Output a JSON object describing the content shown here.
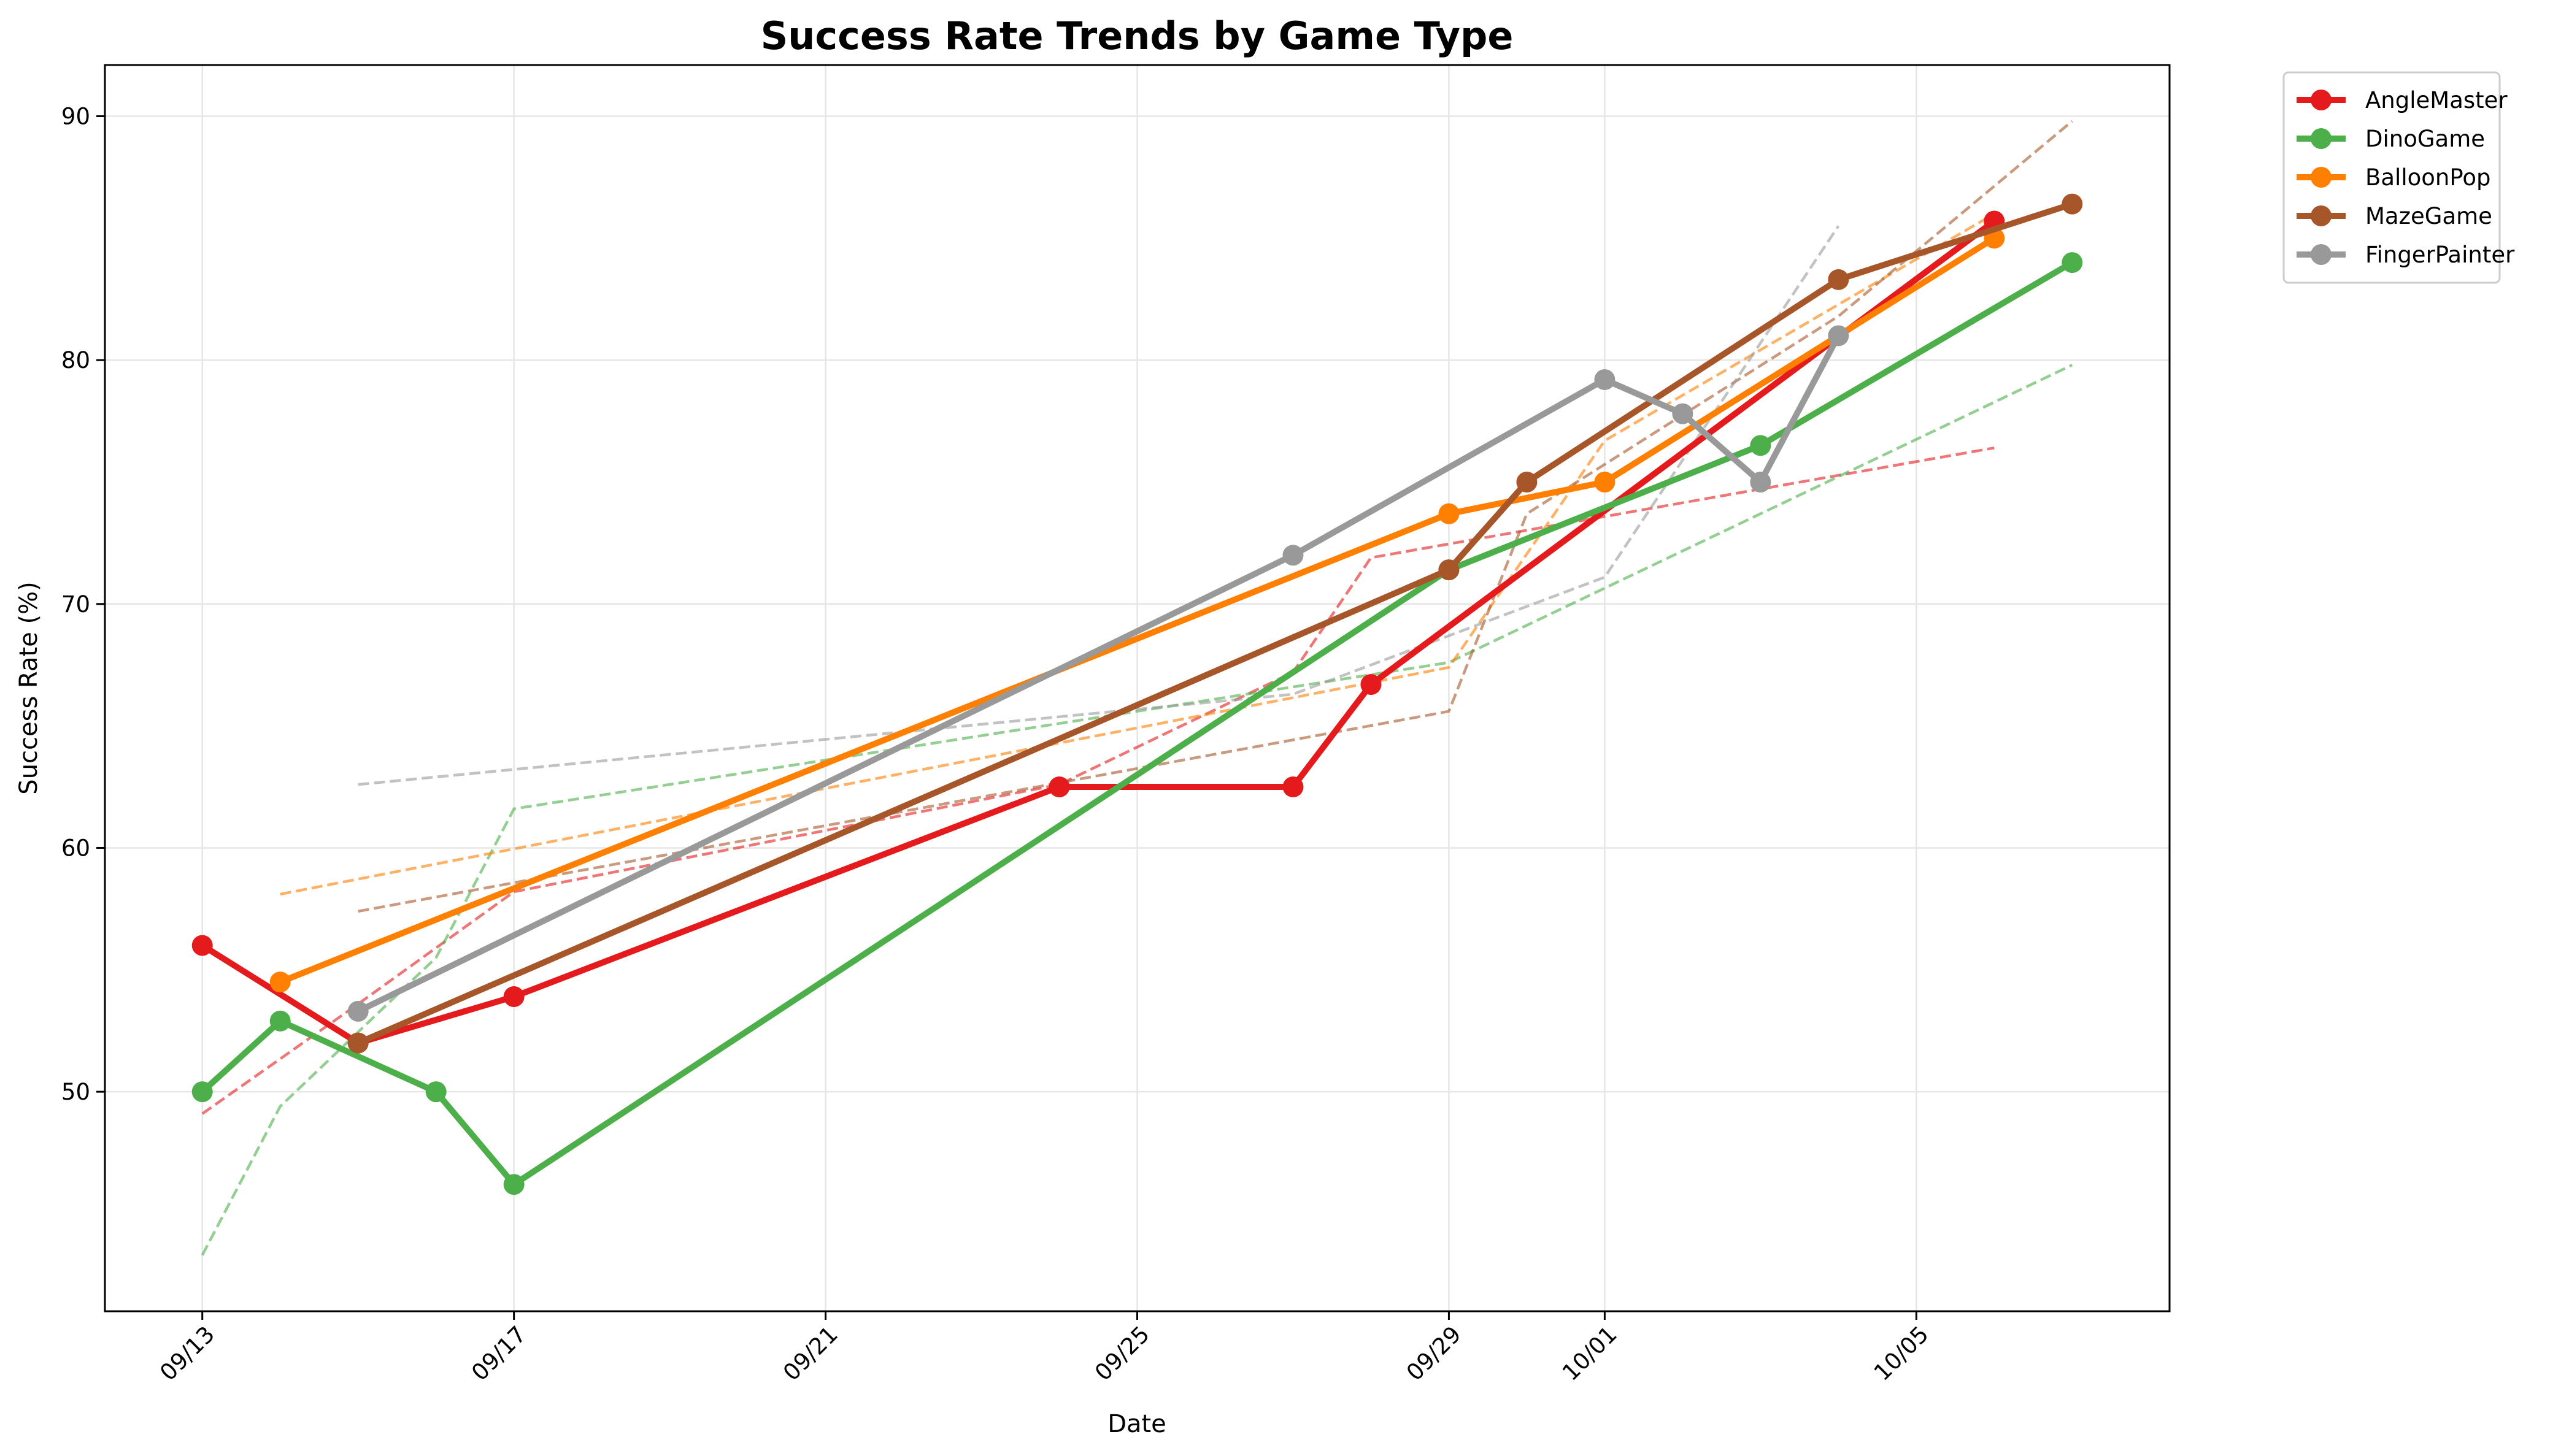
{
  "chart_data": {
    "type": "line",
    "title": "Success Rate Trends by Game Type",
    "xlabel": "Date",
    "ylabel": "Success Rate (%)",
    "x_ticks": [
      "09/13",
      "09/17",
      "09/21",
      "09/25",
      "09/29",
      "10/01",
      "10/05"
    ],
    "x_tick_dates": [
      "2024-09-13",
      "2024-09-17",
      "2024-09-21",
      "2024-09-25",
      "2024-09-29",
      "2024-10-01",
      "2024-10-05"
    ],
    "y_ticks": [
      50,
      60,
      70,
      80,
      90
    ],
    "xlim": [
      "2024-09-11T18:00",
      "2024-10-08T06:00"
    ],
    "ylim": [
      41,
      92.1
    ],
    "grid": true,
    "legend_position": "outside-upper-right",
    "series": [
      {
        "name": "AngleMaster",
        "color": "#e41a1c",
        "x": [
          "2024-09-13",
          "2024-09-15",
          "2024-09-17",
          "2024-09-24",
          "2024-09-27",
          "2024-09-28",
          "2024-10-06"
        ],
        "y": [
          56.0,
          52.0,
          53.9,
          62.5,
          62.5,
          66.7,
          85.7
        ],
        "trend_y": [
          49.1,
          53.6,
          58.2,
          62.6,
          67.2,
          71.9,
          76.4
        ]
      },
      {
        "name": "DinoGame",
        "color": "#4daf4a",
        "x": [
          "2024-09-13",
          "2024-09-14",
          "2024-09-16",
          "2024-09-17",
          "2024-09-29",
          "2024-10-03",
          "2024-10-07"
        ],
        "y": [
          50.0,
          52.9,
          50.0,
          46.2,
          71.4,
          76.5,
          84.0
        ],
        "trend_y": [
          43.3,
          49.4,
          55.5,
          61.6,
          67.6,
          73.7,
          79.8
        ]
      },
      {
        "name": "BalloonPop",
        "color": "#ff7f00",
        "x": [
          "2024-09-14",
          "2024-09-29",
          "2024-10-01",
          "2024-10-06"
        ],
        "y": [
          54.5,
          73.7,
          75.0,
          85.0
        ],
        "trend_y": [
          58.1,
          67.4,
          76.7,
          86.0
        ]
      },
      {
        "name": "MazeGame",
        "color": "#a65628",
        "x": [
          "2024-09-15",
          "2024-09-29",
          "2024-09-30",
          "2024-10-04",
          "2024-10-07"
        ],
        "y": [
          52.0,
          71.4,
          75.0,
          83.3,
          86.4
        ],
        "trend_y": [
          57.4,
          65.6,
          73.7,
          81.8,
          89.8
        ]
      },
      {
        "name": "FingerPainter",
        "color": "#999999",
        "x": [
          "2024-09-15",
          "2024-09-27",
          "2024-10-01",
          "2024-10-02",
          "2024-10-03",
          "2024-10-04"
        ],
        "y": [
          53.3,
          72.0,
          79.2,
          77.8,
          75.0,
          81.0
        ],
        "trend_y": [
          62.6,
          66.3,
          71.1,
          75.9,
          80.7,
          85.5
        ]
      }
    ]
  }
}
